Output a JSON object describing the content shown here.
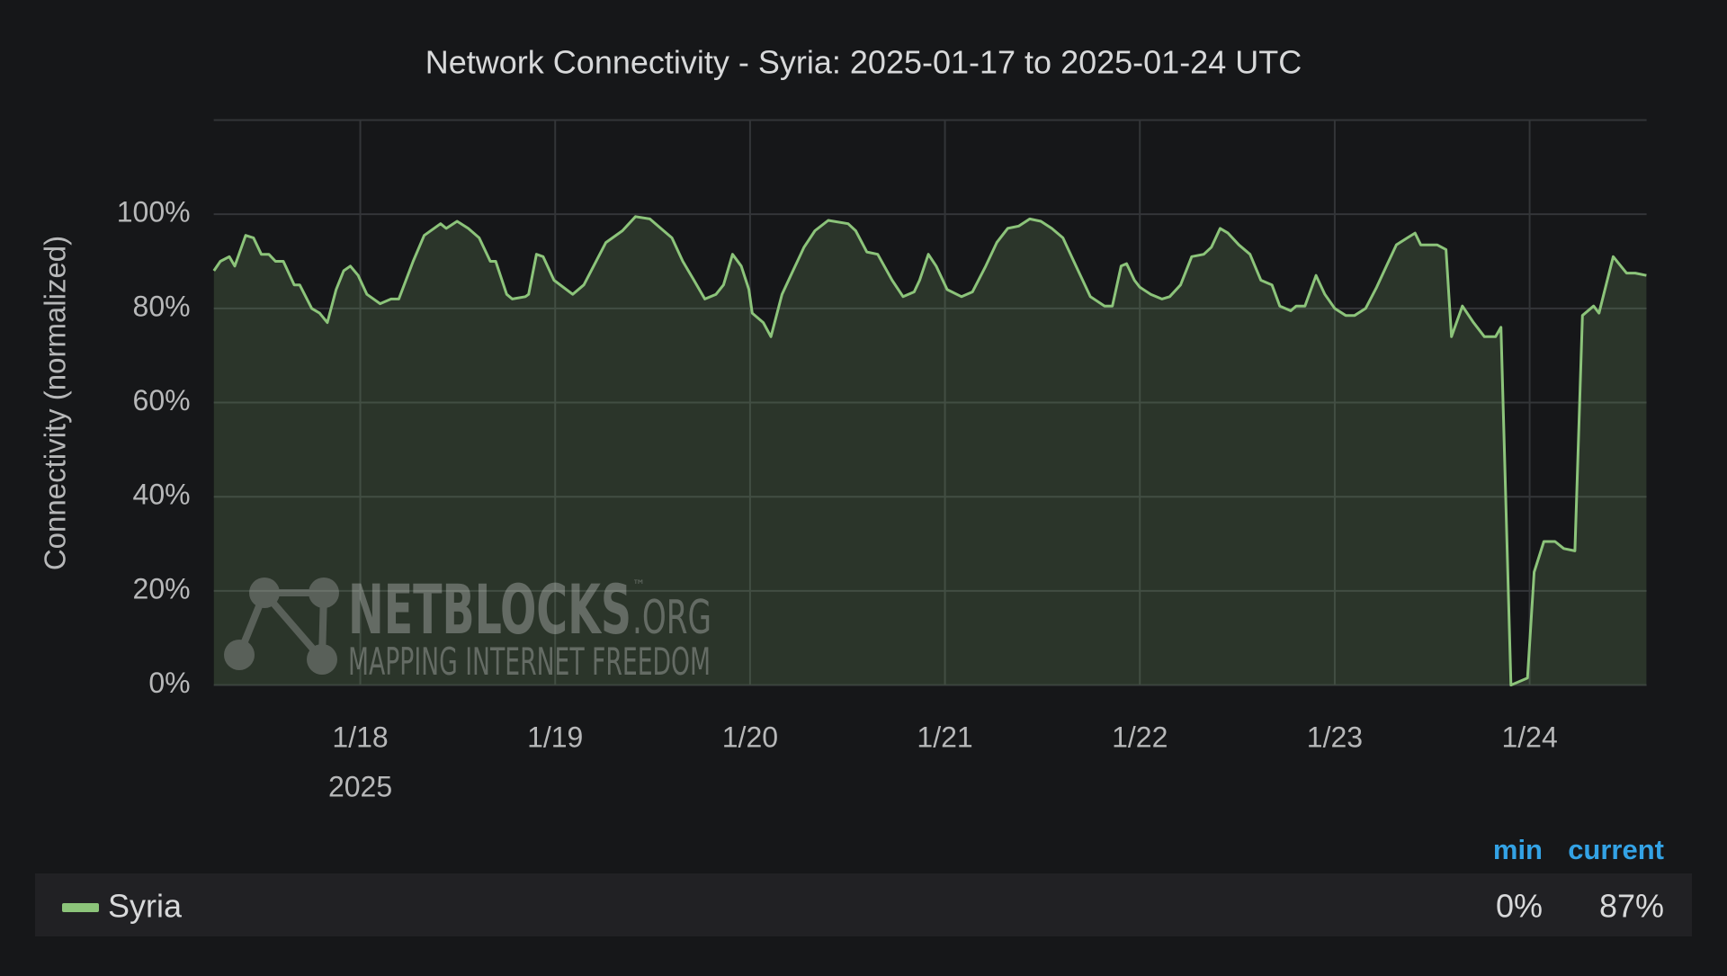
{
  "chart_data": {
    "type": "area",
    "title": "Network Connectivity - Syria: 2025-01-17 to 2025-01-24 UTC",
    "y_label": "Connectivity (normalized)",
    "x_year_label": "2025",
    "xlim": [
      17.248,
      24.6
    ],
    "xticks": [
      {
        "value": 18,
        "label": "1/18"
      },
      {
        "value": 19,
        "label": "1/19"
      },
      {
        "value": 20,
        "label": "1/20"
      },
      {
        "value": 21,
        "label": "1/21"
      },
      {
        "value": 22,
        "label": "1/22"
      },
      {
        "value": 23,
        "label": "1/23"
      },
      {
        "value": 24,
        "label": "1/24"
      }
    ],
    "ylim": [
      0,
      120
    ],
    "yticks": [
      {
        "value": 0,
        "label": "0%"
      },
      {
        "value": 20,
        "label": "20%"
      },
      {
        "value": 40,
        "label": "40%"
      },
      {
        "value": 60,
        "label": "60%"
      },
      {
        "value": 80,
        "label": "80%"
      },
      {
        "value": 100,
        "label": "100%"
      }
    ],
    "grid": true,
    "x": [
      17.249,
      17.282,
      17.328,
      17.356,
      17.412,
      17.452,
      17.492,
      17.531,
      17.565,
      17.605,
      17.661,
      17.689,
      17.751,
      17.791,
      17.831,
      17.876,
      17.915,
      17.949,
      17.989,
      18.034,
      18.102,
      18.158,
      18.198,
      18.271,
      18.328,
      18.412,
      18.441,
      18.497,
      18.554,
      18.61,
      18.667,
      18.695,
      18.751,
      18.78,
      18.847,
      18.864,
      18.904,
      18.938,
      18.994,
      19.09,
      19.147,
      19.26,
      19.345,
      19.412,
      19.486,
      19.542,
      19.599,
      19.655,
      19.712,
      19.768,
      19.825,
      19.864,
      19.91,
      19.955,
      19.994,
      20.011,
      20.068,
      20.107,
      20.164,
      20.22,
      20.277,
      20.333,
      20.401,
      20.503,
      20.542,
      20.599,
      20.655,
      20.729,
      20.785,
      20.842,
      20.87,
      20.915,
      20.955,
      21.011,
      21.085,
      21.141,
      21.209,
      21.266,
      21.322,
      21.379,
      21.435,
      21.492,
      21.548,
      21.605,
      21.661,
      21.746,
      21.819,
      21.859,
      21.904,
      21.932,
      21.972,
      22.0,
      22.056,
      22.113,
      22.153,
      22.209,
      22.266,
      22.328,
      22.367,
      22.412,
      22.452,
      22.508,
      22.565,
      22.621,
      22.678,
      22.718,
      22.774,
      22.802,
      22.847,
      22.904,
      22.949,
      23.0,
      23.056,
      23.102,
      23.158,
      23.215,
      23.271,
      23.316,
      23.373,
      23.412,
      23.441,
      23.525,
      23.571,
      23.599,
      23.655,
      23.712,
      23.768,
      23.825,
      23.853,
      23.904,
      23.989,
      24.023,
      24.073,
      24.13,
      24.175,
      24.232,
      24.271,
      24.328,
      24.356,
      24.429,
      24.497,
      24.542,
      24.599
    ],
    "series": [
      {
        "name": "Syria",
        "color": "#8cc47a",
        "values": [
          88,
          90,
          91,
          89,
          95.5,
          95,
          91.5,
          91.5,
          90,
          90,
          85,
          85,
          80,
          79,
          77,
          84,
          88,
          89,
          87,
          83,
          81,
          82,
          82,
          90,
          95.5,
          98,
          97,
          98.5,
          97,
          95,
          90,
          90,
          83,
          82,
          82.5,
          83,
          91.5,
          91,
          86,
          83,
          85,
          94,
          96.5,
          99.5,
          99,
          97,
          95,
          90,
          86,
          82,
          83,
          85,
          91.5,
          89,
          84,
          79,
          77,
          74,
          83,
          88,
          93,
          96.5,
          98.7,
          98,
          96.5,
          92,
          91.5,
          86,
          82.5,
          83.5,
          86,
          91.5,
          89,
          84,
          82.5,
          83.5,
          89,
          94,
          97,
          97.5,
          99,
          98.5,
          97,
          95,
          90,
          82.5,
          80.5,
          80.5,
          89,
          89.5,
          86,
          84.5,
          83,
          82,
          82.5,
          85,
          91,
          91.5,
          93,
          97,
          96,
          93.5,
          91.5,
          86,
          85,
          80.5,
          79.5,
          80.5,
          80.5,
          87,
          83,
          80,
          78.5,
          78.5,
          80,
          84.5,
          89.5,
          93.5,
          95,
          96,
          93.5,
          93.5,
          92.5,
          74,
          80.5,
          77,
          74,
          74,
          76,
          0,
          1.5,
          24,
          30.5,
          30.5,
          29,
          28.5,
          78.5,
          80.5,
          79,
          91,
          87.5,
          87.5,
          87
        ]
      }
    ],
    "legend_stats": [
      {
        "name": "min",
        "value": 0,
        "label": "0%"
      },
      {
        "name": "current",
        "value": 87,
        "label": "87%"
      }
    ],
    "watermark": {
      "name": "NETBLOCKS",
      "suffix": ".ORG",
      "mark": "™",
      "tagline": "MAPPING INTERNET FREEDOM"
    }
  }
}
